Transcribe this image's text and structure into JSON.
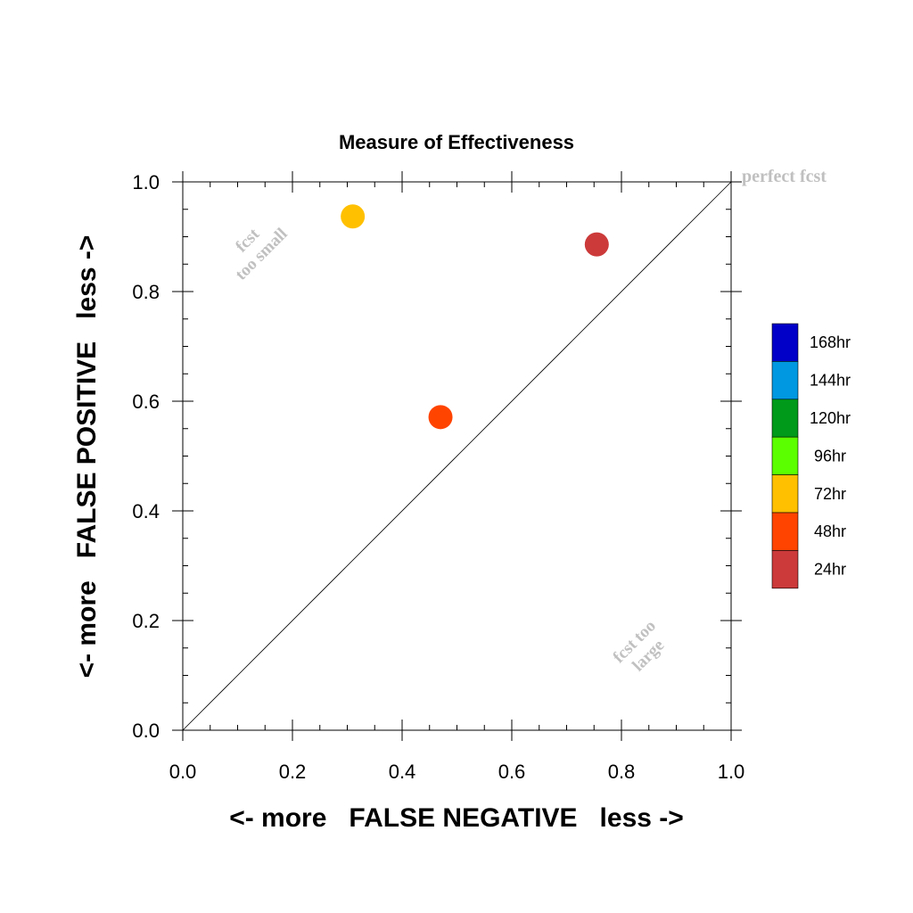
{
  "chart_data": {
    "type": "scatter",
    "title": "Measure of Effectiveness",
    "xlabel": "<- more   FALSE NEGATIVE   less ->",
    "ylabel": "<- more   FALSE POSITIVE   less ->",
    "xlim": [
      0,
      1
    ],
    "ylim": [
      0,
      1
    ],
    "xticks": [
      "0.0",
      "0.2",
      "0.4",
      "0.6",
      "0.8",
      "1.0"
    ],
    "yticks": [
      "0.0",
      "0.2",
      "0.4",
      "0.6",
      "0.8",
      "1.0"
    ],
    "grid": false,
    "diagonal_line": true,
    "points": [
      {
        "x": 0.31,
        "y": 0.937,
        "color": "#ffc000",
        "series": "72hr"
      },
      {
        "x": 0.47,
        "y": 0.571,
        "color": "#ff4400",
        "series": "48hr"
      },
      {
        "x": 0.755,
        "y": 0.886,
        "color": "#cc3a3a",
        "series": "24hr"
      }
    ],
    "legend": {
      "placement": "right",
      "entries": [
        {
          "label": "168hr",
          "color": "#0000c8"
        },
        {
          "label": "144hr",
          "color": "#0098e0"
        },
        {
          "label": "120hr",
          "color": "#009a1a"
        },
        {
          "label": "96hr",
          "color": "#5cff00"
        },
        {
          "label": "72hr",
          "color": "#ffc000"
        },
        {
          "label": "48hr",
          "color": "#ff4400"
        },
        {
          "label": "24hr",
          "color": "#cc3a3a"
        }
      ]
    },
    "annotations": {
      "perfect": "perfect fcst",
      "too_small": [
        "fcst",
        "too small"
      ],
      "too_large": [
        "fcst too",
        "large"
      ]
    }
  }
}
